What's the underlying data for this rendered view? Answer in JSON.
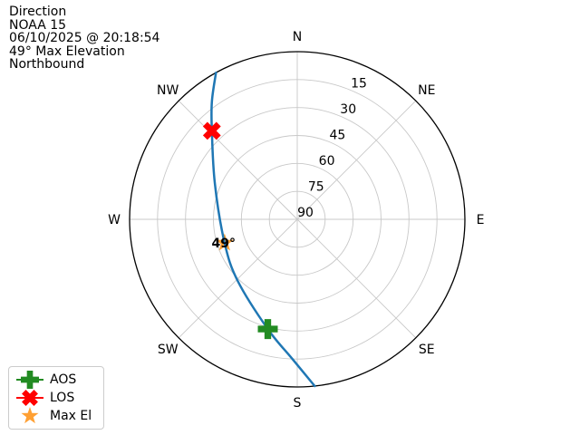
{
  "info": {
    "line1": "Direction",
    "line2": "NOAA 15",
    "line3": "06/10/2025 @ 20:18:54",
    "line4": "49° Max Elevation",
    "line5": "Northbound"
  },
  "legend": {
    "items": [
      {
        "label": "AOS",
        "marker": "plus",
        "color_key": "aos",
        "line": true
      },
      {
        "label": "LOS",
        "marker": "x",
        "color_key": "los",
        "line": true
      },
      {
        "label": "Max El",
        "marker": "star",
        "color_key": "max_el",
        "line": false
      }
    ]
  },
  "chart_data": {
    "type": "polar_sky_track",
    "title": "Direction",
    "satellite": "NOAA 15",
    "timestamp": "06/10/2025 @ 20:18:54",
    "max_elevation_deg": 49,
    "pass_direction": "Northbound",
    "compass_labels": [
      "N",
      "NE",
      "E",
      "SE",
      "S",
      "SW",
      "W",
      "NW"
    ],
    "compass_azimuths_deg": [
      0,
      45,
      90,
      135,
      180,
      225,
      270,
      315
    ],
    "elevation_rings_deg": [
      15,
      30,
      45,
      60,
      75,
      90
    ],
    "ring_label_azimuth_deg": 22.5,
    "elevation_range": [
      0,
      90
    ],
    "annotation": "49°",
    "track_azimuth_elevation": [
      {
        "az": 174,
        "el": 0
      },
      {
        "az": 182,
        "el": 15
      },
      {
        "az": 195,
        "el": 29,
        "marker": "AOS"
      },
      {
        "az": 224,
        "el": 44
      },
      {
        "az": 252,
        "el": 49,
        "marker": "Max El",
        "annotate": true
      },
      {
        "az": 293,
        "el": 42
      },
      {
        "az": 316,
        "el": 24,
        "marker": "LOS"
      },
      {
        "az": 324,
        "el": 12
      },
      {
        "az": 331,
        "el": 0
      }
    ],
    "colors": {
      "track": "#1f77b4",
      "aos": "#228b22",
      "los": "#ff0000",
      "max_el": "#ffa033",
      "grid": "#c8c8c8",
      "outer_ring": "#000000",
      "text": "#000000"
    }
  }
}
